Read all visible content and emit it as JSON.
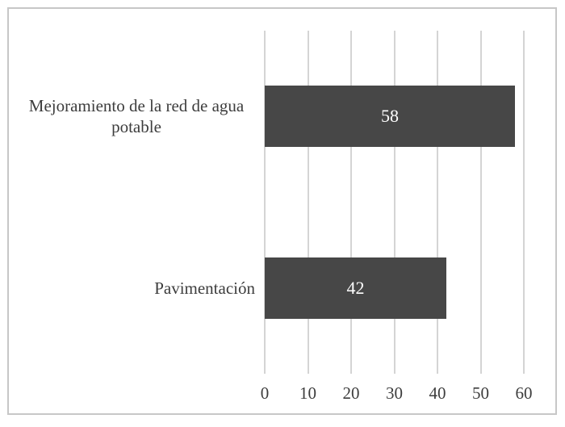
{
  "chart_data": {
    "type": "bar",
    "orientation": "horizontal",
    "title": "",
    "xlabel": "",
    "ylabel": "",
    "categories": [
      "Mejoramiento de la red de agua potable",
      "Pavimentación"
    ],
    "values": [
      58,
      42
    ],
    "xlim": [
      0,
      60
    ],
    "xticks": [
      0,
      10,
      20,
      30,
      40,
      50,
      60
    ],
    "grid": "vertical-major-gridlines",
    "legend": "none",
    "colors": {
      "bar": "#474747",
      "value_label": "#ffffff",
      "axis_text": "#3d3d3d",
      "gridline": "#d4d4d4",
      "frame_border": "#c7c7c7",
      "background": "#ffffff"
    }
  }
}
